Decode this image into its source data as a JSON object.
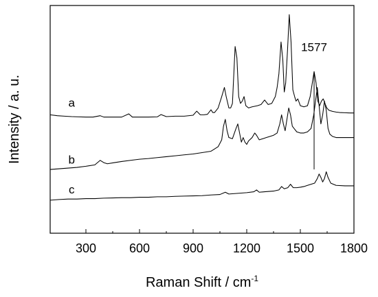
{
  "chart_data": {
    "type": "line",
    "xlabel": "Raman Shift / cm",
    "xlabel_superscript": "-1",
    "ylabel": "Intensity / a. u.",
    "xlim": [
      100,
      1800
    ],
    "ylim": [
      0,
      100
    ],
    "x_ticks": [
      300,
      600,
      900,
      1200,
      1500,
      1800
    ],
    "x_tick_labels": [
      "300",
      "600",
      "900",
      "1200",
      "1500",
      "1800"
    ],
    "y_ticks_visible": false,
    "grid": false,
    "legend": "none",
    "colors": {
      "axis": "#000000",
      "line": "#000000",
      "background": "#ffffff"
    },
    "series": [
      {
        "name": "a",
        "label_at": {
          "x": 220,
          "y": 55.5
        },
        "x": [
          100,
          140,
          180,
          220,
          260,
          300,
          340,
          380,
          400,
          420,
          460,
          500,
          540,
          560,
          600,
          650,
          700,
          720,
          750,
          800,
          850,
          900,
          920,
          940,
          960,
          980,
          1000,
          1010,
          1020,
          1040,
          1060,
          1075,
          1085,
          1100,
          1110,
          1120,
          1135,
          1145,
          1155,
          1165,
          1175,
          1185,
          1195,
          1210,
          1230,
          1260,
          1280,
          1300,
          1320,
          1340,
          1360,
          1370,
          1380,
          1392,
          1402,
          1410,
          1418,
          1428,
          1438,
          1448,
          1458,
          1468,
          1476,
          1486,
          1500,
          1520,
          1540,
          1555,
          1565,
          1577,
          1588,
          1598,
          1608,
          1618,
          1628,
          1638,
          1648,
          1660,
          1680,
          1700,
          1720,
          1750,
          1780,
          1800
        ],
        "y": [
          52.0,
          51.6,
          51.4,
          51.2,
          51.1,
          51.0,
          51.0,
          51.6,
          51.0,
          51.0,
          51.0,
          51.0,
          52.4,
          51.0,
          51.0,
          51.0,
          51.1,
          52.1,
          51.2,
          51.4,
          51.4,
          51.8,
          53.6,
          52.0,
          52.0,
          52.2,
          54.2,
          53.0,
          53.0,
          55.0,
          60.0,
          64.0,
          60.0,
          55.0,
          55.0,
          57.0,
          82.0,
          77.0,
          60.0,
          57.0,
          58.0,
          60.0,
          56.0,
          55.0,
          55.5,
          56.0,
          56.5,
          58.5,
          56.5,
          57.0,
          60.0,
          64.0,
          70.0,
          84.0,
          76.0,
          62.0,
          66.0,
          80.0,
          96.0,
          84.0,
          63.0,
          60.0,
          58.0,
          59.0,
          56.0,
          55.5,
          56.0,
          60.0,
          65.0,
          71.0,
          66.0,
          58.0,
          56.0,
          58.0,
          59.0,
          57.0,
          55.0,
          54.0,
          53.5,
          53.2,
          53.0,
          52.9,
          52.8,
          52.8
        ]
      },
      {
        "name": "b",
        "label_at": {
          "x": 220,
          "y": 30.5
        },
        "x": [
          100,
          150,
          200,
          250,
          300,
          350,
          380,
          400,
          420,
          460,
          500,
          550,
          600,
          650,
          700,
          750,
          800,
          850,
          900,
          950,
          1000,
          1020,
          1040,
          1060,
          1070,
          1080,
          1090,
          1100,
          1120,
          1140,
          1150,
          1160,
          1170,
          1180,
          1190,
          1200,
          1210,
          1230,
          1245,
          1255,
          1270,
          1290,
          1310,
          1330,
          1350,
          1370,
          1385,
          1395,
          1405,
          1415,
          1425,
          1435,
          1445,
          1455,
          1465,
          1480,
          1500,
          1520,
          1540,
          1560,
          1575,
          1585,
          1595,
          1605,
          1615,
          1625,
          1635,
          1645,
          1655,
          1665,
          1680,
          1700,
          1730,
          1760,
          1800
        ],
        "y": [
          28.0,
          28.3,
          28.6,
          28.9,
          29.4,
          30.0,
          32.0,
          31.0,
          30.5,
          31.0,
          31.5,
          32.0,
          32.5,
          32.8,
          33.2,
          33.6,
          34.0,
          34.4,
          34.8,
          35.4,
          36.0,
          37.0,
          38.0,
          41.0,
          47.0,
          50.0,
          45.0,
          42.0,
          41.5,
          46.0,
          48.0,
          44.0,
          40.0,
          42.0,
          40.0,
          39.0,
          40.5,
          42.0,
          44.0,
          43.0,
          41.0,
          41.5,
          42.0,
          42.5,
          43.0,
          44.0,
          48.0,
          52.0,
          48.0,
          45.0,
          50.0,
          55.0,
          52.0,
          47.0,
          46.0,
          44.5,
          44.0,
          44.0,
          44.5,
          46.0,
          52.0,
          58.0,
          64.0,
          56.0,
          48.0,
          52.0,
          58.0,
          54.0,
          46.0,
          43.5,
          42.5,
          42.0,
          42.0,
          42.0,
          42.0
        ]
      },
      {
        "name": "c",
        "label_at": {
          "x": 220,
          "y": 17.5
        },
        "x": [
          100,
          150,
          200,
          250,
          300,
          350,
          400,
          450,
          500,
          550,
          600,
          650,
          700,
          750,
          800,
          850,
          900,
          950,
          1000,
          1050,
          1080,
          1100,
          1150,
          1200,
          1240,
          1255,
          1270,
          1300,
          1350,
          1380,
          1395,
          1410,
          1430,
          1445,
          1460,
          1480,
          1500,
          1520,
          1540,
          1560,
          1580,
          1595,
          1605,
          1615,
          1625,
          1635,
          1645,
          1655,
          1670,
          1700,
          1750,
          1800
        ],
        "y": [
          14.5,
          14.8,
          15.0,
          15.0,
          15.2,
          15.2,
          15.4,
          15.5,
          15.6,
          15.6,
          15.8,
          15.8,
          16.0,
          16.0,
          16.2,
          16.3,
          16.4,
          16.5,
          16.8,
          17.0,
          18.0,
          17.2,
          17.5,
          17.8,
          18.2,
          19.0,
          18.0,
          18.2,
          18.5,
          19.0,
          20.5,
          19.5,
          20.0,
          21.5,
          20.0,
          20.0,
          20.2,
          20.5,
          21.0,
          21.5,
          22.0,
          24.0,
          26.0,
          24.5,
          22.5,
          24.0,
          27.0,
          24.5,
          22.0,
          21.0,
          20.8,
          20.8
        ]
      }
    ],
    "annotations": [
      {
        "text": "1577",
        "x": 1577,
        "line_top": 71,
        "line_bottom": 28,
        "text_y": 80
      }
    ]
  }
}
